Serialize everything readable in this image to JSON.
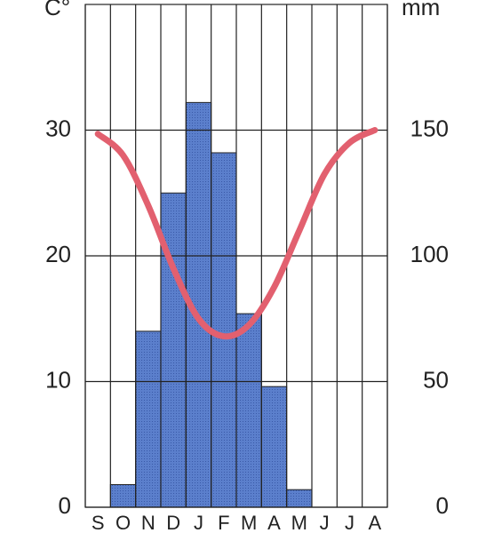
{
  "chart_data": {
    "type": "climograph",
    "y_label": "C°",
    "y2_label": "mm",
    "categories": [
      "S",
      "O",
      "N",
      "D",
      "J",
      "F",
      "M",
      "A",
      "M",
      "J",
      "J",
      "A"
    ],
    "ylim": [
      0,
      40
    ],
    "yticks": [
      0,
      10,
      20,
      30
    ],
    "y2lim": [
      0,
      200
    ],
    "y2ticks": [
      0,
      50,
      100,
      150
    ],
    "grid": true,
    "series": [
      {
        "type": "bar",
        "axis": "y2",
        "color": "#5b7fcc",
        "values": [
          0,
          9,
          70,
          125,
          161,
          141,
          77,
          48,
          7,
          0,
          0,
          0
        ]
      },
      {
        "type": "line",
        "axis": "y",
        "color": "#e2606f",
        "values": [
          29.7,
          28,
          24,
          19,
          15,
          13.6,
          14.5,
          17.5,
          22,
          26.5,
          29,
          30
        ]
      }
    ]
  }
}
